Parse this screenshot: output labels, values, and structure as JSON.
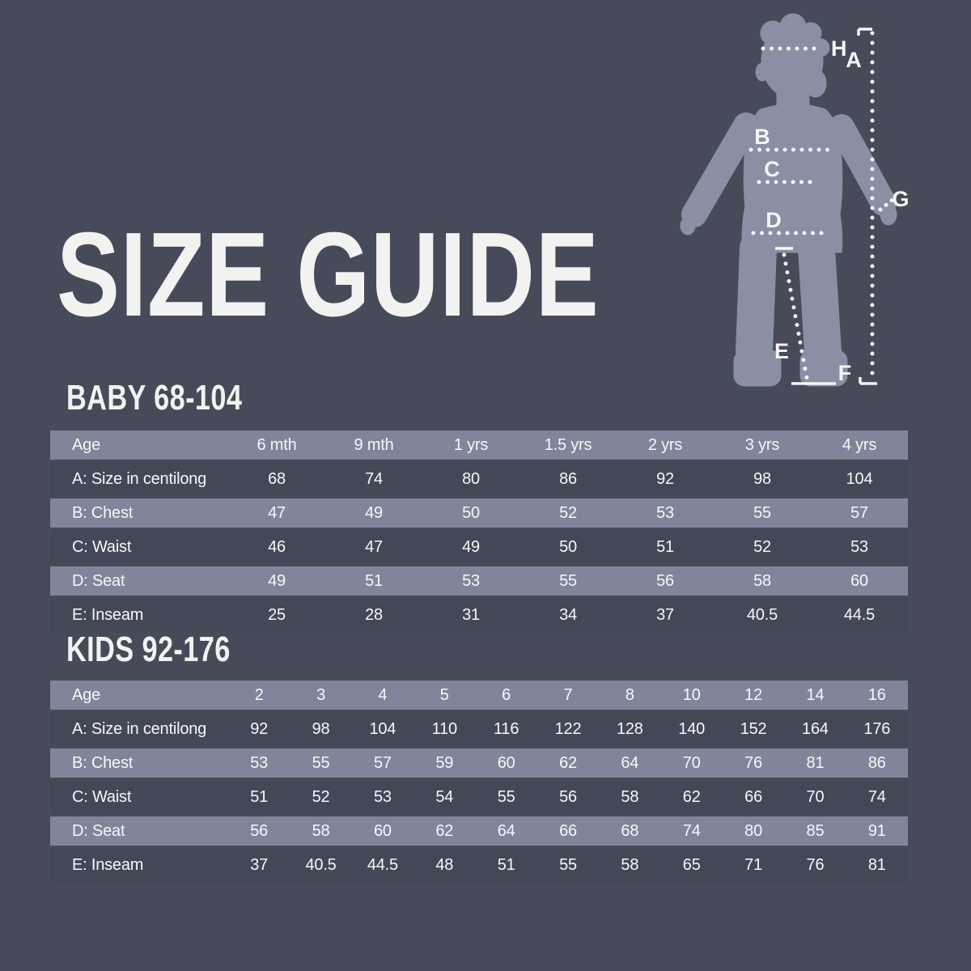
{
  "title": "SIZE GUIDE",
  "theme": {
    "background": "#474b59",
    "row_light": "#80869a",
    "row_dark": "#434857",
    "silhouette": "#8a90a3",
    "text": "#f7f7f8"
  },
  "figure": {
    "description": "child-silhouette-with-measurement-lines",
    "labels": {
      "a": "A",
      "b": "B",
      "c": "C",
      "d": "D",
      "e": "E",
      "f": "F",
      "g": "G",
      "h": "H"
    }
  },
  "tables": [
    {
      "heading": "BABY 68-104",
      "columns": [
        "Age",
        "6 mth",
        "9 mth",
        "1 yrs",
        "1.5 yrs",
        "2 yrs",
        "3 yrs",
        "4 yrs"
      ],
      "rows": [
        {
          "label": "A: Size in centilong",
          "values": [
            "68",
            "74",
            "80",
            "86",
            "92",
            "98",
            "104"
          ]
        },
        {
          "label": "B: Chest",
          "values": [
            "47",
            "49",
            "50",
            "52",
            "53",
            "55",
            "57"
          ]
        },
        {
          "label": "C: Waist",
          "values": [
            "46",
            "47",
            "49",
            "50",
            "51",
            "52",
            "53"
          ]
        },
        {
          "label": "D: Seat",
          "values": [
            "49",
            "51",
            "53",
            "55",
            "56",
            "58",
            "60"
          ]
        },
        {
          "label": "E: Inseam",
          "values": [
            "25",
            "28",
            "31",
            "34",
            "37",
            "40.5",
            "44.5"
          ]
        }
      ]
    },
    {
      "heading": "KIDS 92-176",
      "columns": [
        "Age",
        "2",
        "3",
        "4",
        "5",
        "6",
        "7",
        "8",
        "10",
        "12",
        "14",
        "16"
      ],
      "rows": [
        {
          "label": "A: Size in centilong",
          "values": [
            "92",
            "98",
            "104",
            "110",
            "116",
            "122",
            "128",
            "140",
            "152",
            "164",
            "176"
          ]
        },
        {
          "label": "B: Chest",
          "values": [
            "53",
            "55",
            "57",
            "59",
            "60",
            "62",
            "64",
            "70",
            "76",
            "81",
            "86"
          ]
        },
        {
          "label": "C: Waist",
          "values": [
            "51",
            "52",
            "53",
            "54",
            "55",
            "56",
            "58",
            "62",
            "66",
            "70",
            "74"
          ]
        },
        {
          "label": "D: Seat",
          "values": [
            "56",
            "58",
            "60",
            "62",
            "64",
            "66",
            "68",
            "74",
            "80",
            "85",
            "91"
          ]
        },
        {
          "label": "E: Inseam",
          "values": [
            "37",
            "40.5",
            "44.5",
            "48",
            "51",
            "55",
            "58",
            "65",
            "71",
            "76",
            "81"
          ]
        }
      ]
    }
  ]
}
